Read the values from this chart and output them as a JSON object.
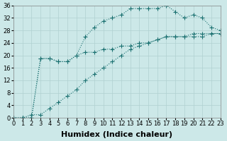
{
  "xlabel": "Humidex (Indice chaleur)",
  "background_color": "#cce8e8",
  "grid_color": "#b0d0d0",
  "line_color": "#1a7070",
  "x_values": [
    0,
    1,
    2,
    3,
    4,
    5,
    6,
    7,
    8,
    9,
    10,
    11,
    12,
    13,
    14,
    15,
    16,
    17,
    18,
    19,
    20,
    21,
    22,
    23
  ],
  "series1": [
    0,
    0,
    0,
    19,
    19,
    18,
    18,
    20,
    26,
    29,
    31,
    32,
    33,
    35,
    35,
    35,
    35,
    36,
    34,
    32,
    33,
    32,
    29,
    28
  ],
  "series2": [
    0,
    0,
    0,
    19,
    19,
    18,
    18,
    20,
    21,
    21,
    22,
    22,
    23,
    23,
    24,
    24,
    25,
    26,
    26,
    26,
    27,
    27,
    27,
    27
  ],
  "series3": [
    0,
    0,
    1,
    1,
    3,
    5,
    7,
    9,
    12,
    14,
    16,
    18,
    20,
    22,
    23,
    24,
    25,
    26,
    26,
    26,
    26,
    26,
    27,
    27
  ],
  "xlim": [
    0,
    23
  ],
  "ylim": [
    0,
    36
  ],
  "yticks": [
    0,
    4,
    8,
    12,
    16,
    20,
    24,
    28,
    32,
    36
  ],
  "xticks": [
    0,
    1,
    2,
    3,
    4,
    5,
    6,
    7,
    8,
    9,
    10,
    11,
    12,
    13,
    14,
    15,
    16,
    17,
    18,
    19,
    20,
    21,
    22,
    23
  ],
  "tick_fontsize": 6,
  "xlabel_fontsize": 8,
  "marker_size": 3,
  "linewidth": 0.8
}
